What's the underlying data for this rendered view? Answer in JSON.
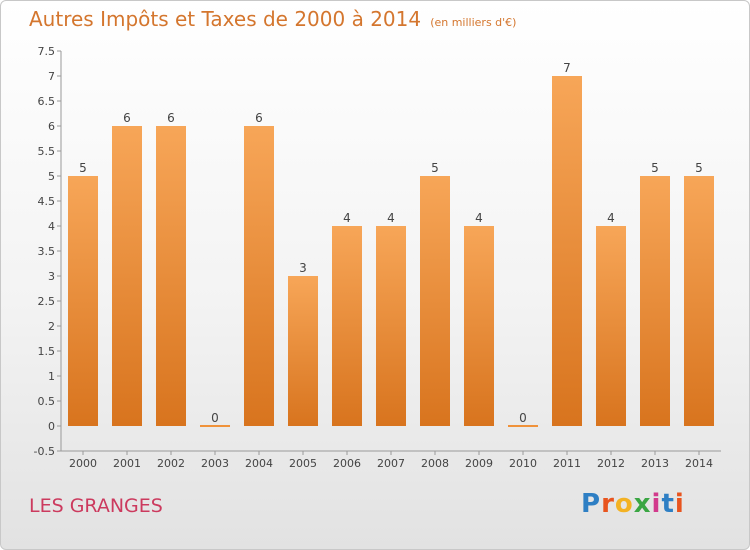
{
  "chart_data": {
    "type": "bar",
    "title": "Autres Impôts et Taxes de 2000 à 2014",
    "unit_note": "(en milliers d'€)",
    "categories": [
      "2000",
      "2001",
      "2002",
      "2003",
      "2004",
      "2005",
      "2006",
      "2007",
      "2008",
      "2009",
      "2010",
      "2011",
      "2012",
      "2013",
      "2014"
    ],
    "values": [
      5,
      6,
      6,
      0,
      6,
      3,
      4,
      4,
      5,
      4,
      0,
      7,
      4,
      5,
      5
    ],
    "ylim": [
      -0.5,
      7.5
    ],
    "yticks": [
      "-0.5",
      "0",
      "0.5",
      "1",
      "1.5",
      "2",
      "2.5",
      "3",
      "3.5",
      "4",
      "4.5",
      "5",
      "5.5",
      "6",
      "6.5",
      "7",
      "7.5"
    ],
    "grid": false,
    "bar_color": "#f0923a",
    "bar_color_light": "#f7a658",
    "bar_color_dark": "#d8741e"
  },
  "footer": {
    "commune": "LES GRANGES",
    "logo_text": "Proxiti",
    "logo_colors": [
      "#2e7fc4",
      "#e8541e",
      "#f3b224",
      "#3aa643",
      "#d23a8c",
      "#2e7fc4",
      "#e8541e"
    ]
  }
}
